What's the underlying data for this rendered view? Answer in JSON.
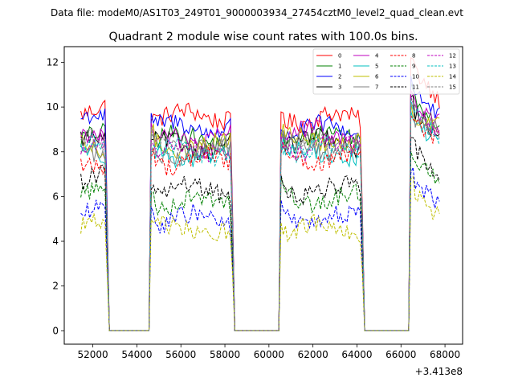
{
  "chart_data": {
    "type": "line",
    "suptitle": "Data file: modeM0/AS1T03_249T01_9000003934_27454cztM0_level2_quad_clean.evt",
    "title": "Quadrant 2 module wise count rates with 100.0s bins.",
    "xlabel": "",
    "ylabel": "",
    "x_offset_label": "+3.413e8",
    "xlim": [
      50700,
      68800
    ],
    "ylim": [
      -0.6,
      12.7
    ],
    "xticks": [
      52000,
      54000,
      56000,
      58000,
      60000,
      62000,
      64000,
      66000,
      68000
    ],
    "yticks": [
      0,
      2,
      4,
      6,
      8,
      10,
      12
    ],
    "segments": [
      [
        51450,
        52550
      ],
      [
        54650,
        58250
      ],
      [
        60550,
        64150
      ],
      [
        66450,
        67750
      ]
    ],
    "gaps": [
      [
        52550,
        54650
      ],
      [
        58250,
        60550
      ],
      [
        64150,
        66450
      ]
    ],
    "series": [
      {
        "name": "0",
        "color": "#ff0000",
        "dash": "solid",
        "levels": [
          9.8,
          9.6,
          9.5,
          10.5
        ]
      },
      {
        "name": "1",
        "color": "#008000",
        "dash": "solid",
        "levels": [
          8.6,
          8.6,
          8.7,
          9.4
        ]
      },
      {
        "name": "2",
        "color": "#0000ff",
        "dash": "solid",
        "levels": [
          9.4,
          9.1,
          9.0,
          9.8
        ]
      },
      {
        "name": "3",
        "color": "#000000",
        "dash": "solid",
        "levels": [
          8.4,
          8.3,
          8.4,
          9.0
        ]
      },
      {
        "name": "4",
        "color": "#bf00bf",
        "dash": "solid",
        "levels": [
          8.6,
          8.6,
          8.8,
          9.4
        ]
      },
      {
        "name": "5",
        "color": "#00bfbf",
        "dash": "solid",
        "levels": [
          8.0,
          7.8,
          7.9,
          8.6
        ]
      },
      {
        "name": "6",
        "color": "#bfbf00",
        "dash": "solid",
        "levels": [
          8.2,
          8.3,
          8.5,
          9.0
        ]
      },
      {
        "name": "7",
        "color": "#808080",
        "dash": "solid",
        "levels": [
          8.1,
          8.0,
          8.2,
          8.8
        ]
      },
      {
        "name": "8",
        "color": "#ff0000",
        "dash": "dashed",
        "levels": [
          7.6,
          7.6,
          7.7,
          8.3
        ]
      },
      {
        "name": "9",
        "color": "#008000",
        "dash": "dashed",
        "levels": [
          6.5,
          5.8,
          5.9,
          6.6
        ]
      },
      {
        "name": "10",
        "color": "#0000ff",
        "dash": "dashed",
        "levels": [
          5.5,
          5.0,
          5.0,
          5.5
        ]
      },
      {
        "name": "11",
        "color": "#000000",
        "dash": "dashed",
        "levels": [
          6.9,
          6.3,
          6.3,
          7.0
        ]
      },
      {
        "name": "12",
        "color": "#bf00bf",
        "dash": "dashed",
        "levels": [
          8.2,
          8.1,
          8.2,
          8.8
        ]
      },
      {
        "name": "13",
        "color": "#00bfbf",
        "dash": "dashed",
        "levels": [
          8.2,
          8.0,
          8.1,
          8.8
        ]
      },
      {
        "name": "14",
        "color": "#bfbf00",
        "dash": "dashed",
        "levels": [
          4.6,
          4.5,
          4.6,
          5.3
        ]
      },
      {
        "name": "15",
        "color": "#808080",
        "dash": "dashed",
        "levels": [
          8.4,
          8.2,
          8.3,
          9.0
        ]
      }
    ],
    "legend_position": "upper right",
    "legend_columns": 4
  }
}
